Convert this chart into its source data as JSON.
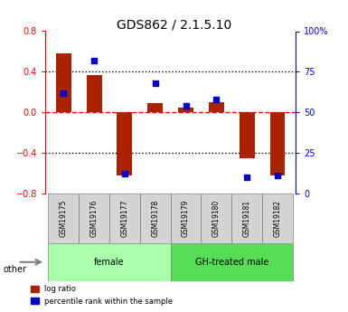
{
  "title": "GDS862 / 2.1.5.10",
  "samples": [
    "GSM19175",
    "GSM19176",
    "GSM19177",
    "GSM19178",
    "GSM19179",
    "GSM19180",
    "GSM19181",
    "GSM19182"
  ],
  "log_ratio": [
    0.58,
    0.37,
    -0.62,
    0.09,
    0.05,
    0.1,
    -0.45,
    -0.62
  ],
  "percentile_rank": [
    62,
    82,
    12,
    68,
    54,
    58,
    10,
    11
  ],
  "groups": [
    {
      "label": "female",
      "start": 0,
      "end": 4,
      "color": "#aaffaa"
    },
    {
      "label": "GH-treated male",
      "start": 4,
      "end": 8,
      "color": "#55dd55"
    }
  ],
  "bar_color": "#aa2200",
  "dot_color": "#0000cc",
  "ylim_left": [
    -0.8,
    0.8
  ],
  "ylim_right": [
    0,
    100
  ],
  "yticks_left": [
    -0.8,
    -0.4,
    0.0,
    0.4,
    0.8
  ],
  "yticks_right": [
    0,
    25,
    50,
    75,
    100
  ],
  "ytick_labels_right": [
    "0",
    "25",
    "50",
    "75",
    "100%"
  ],
  "hlines": [
    0.4,
    0.0,
    -0.4
  ],
  "hline_styles": [
    "dotted",
    "dashed",
    "dotted"
  ],
  "hline_colors": [
    "black",
    "red",
    "black"
  ],
  "other_label": "other",
  "legend_log": "log ratio",
  "legend_pct": "percentile rank within the sample",
  "bar_width": 0.5
}
